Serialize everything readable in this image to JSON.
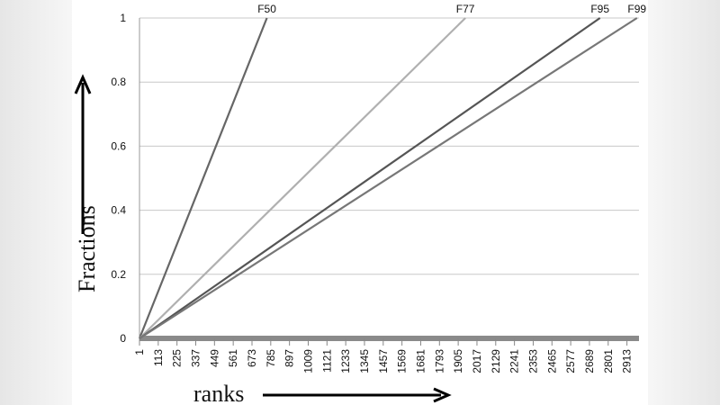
{
  "chart_data": {
    "type": "line",
    "x_label": "ranks",
    "y_label": "Fractions",
    "series": [
      {
        "name": "F50",
        "color": "#666666",
        "x": [
          1,
          762
        ],
        "values": [
          0,
          1
        ]
      },
      {
        "name": "F77",
        "color": "#b0b0b0",
        "x": [
          1,
          1948
        ],
        "values": [
          0,
          1
        ]
      },
      {
        "name": "F95",
        "color": "#555555",
        "x": [
          1,
          2752
        ],
        "values": [
          0,
          1
        ]
      },
      {
        "name": "F99",
        "color": "#777777",
        "x": [
          1,
          2973
        ],
        "values": [
          0,
          1
        ]
      }
    ],
    "xlim": [
      1,
      2985
    ],
    "xticks": [
      1,
      113,
      225,
      337,
      449,
      561,
      673,
      785,
      897,
      1009,
      1121,
      1233,
      1345,
      1457,
      1569,
      1681,
      1793,
      1905,
      2017,
      2129,
      2241,
      2353,
      2465,
      2577,
      2689,
      2801,
      2913
    ],
    "ylim": [
      0,
      1
    ],
    "yticks": [
      0,
      0.2,
      0.4,
      0.6,
      0.8,
      1
    ],
    "grid": true
  }
}
